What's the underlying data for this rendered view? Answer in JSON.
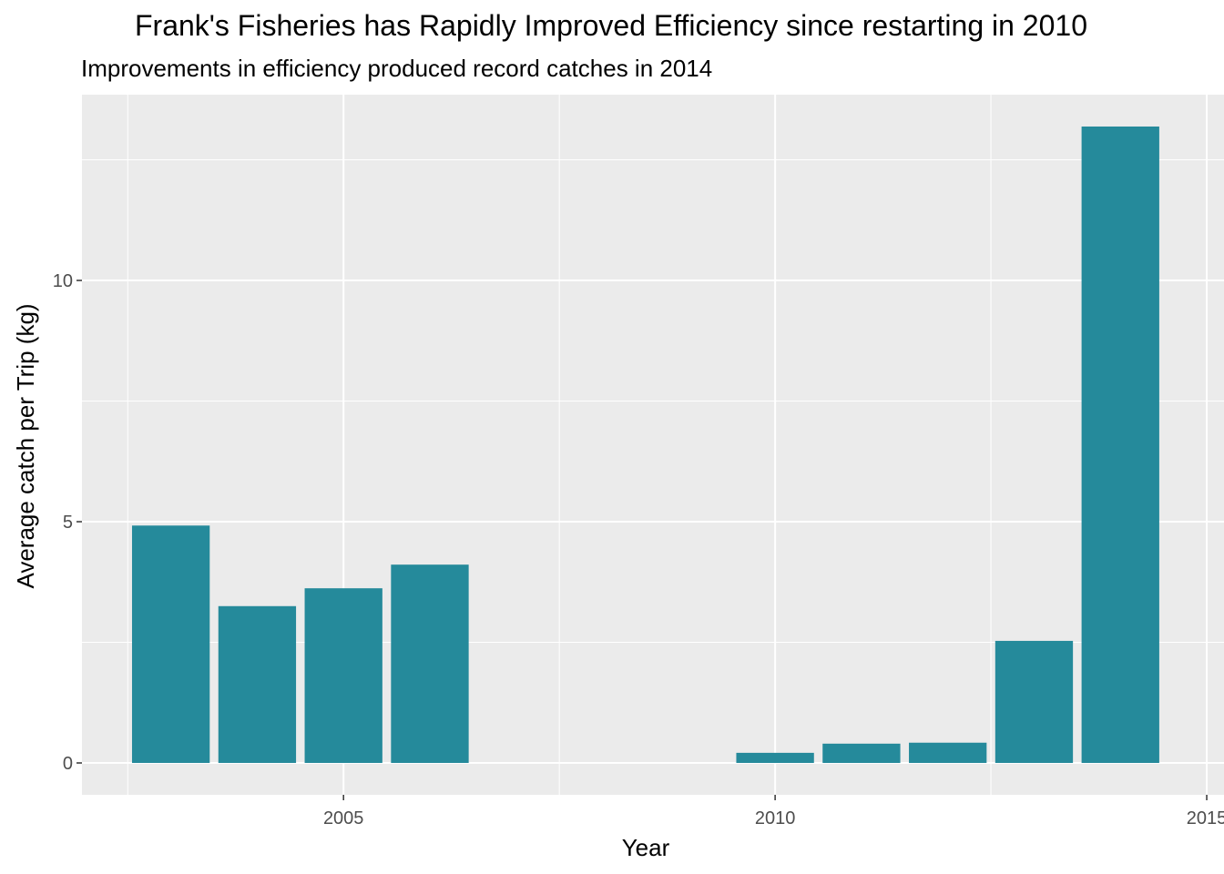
{
  "chart_data": {
    "type": "bar",
    "title": "Frank's Fisheries has Rapidly Improved Efficiency since restarting in 2010",
    "subtitle": "Improvements in efficiency produced record catches in 2014",
    "xlabel": "Year",
    "ylabel": "Average catch per Trip (kg)",
    "x": [
      2003,
      2004,
      2005,
      2006,
      2010,
      2011,
      2012,
      2013,
      2014
    ],
    "values": [
      4.92,
      3.25,
      3.62,
      4.11,
      0.21,
      0.4,
      0.42,
      2.53,
      13.19
    ],
    "xlim": [
      2001.97,
      2015.2
    ],
    "ylim": [
      -0.66,
      13.85
    ],
    "xticks": [
      2005,
      2010,
      2015
    ],
    "xtick_labels": [
      "2005",
      "2010",
      "2015"
    ],
    "yticks": [
      0,
      5,
      10
    ],
    "ytick_labels": [
      "0",
      "5",
      "10"
    ],
    "grid": true,
    "bar_color": "#258A9B",
    "panel_color": "#EBEBEB"
  }
}
